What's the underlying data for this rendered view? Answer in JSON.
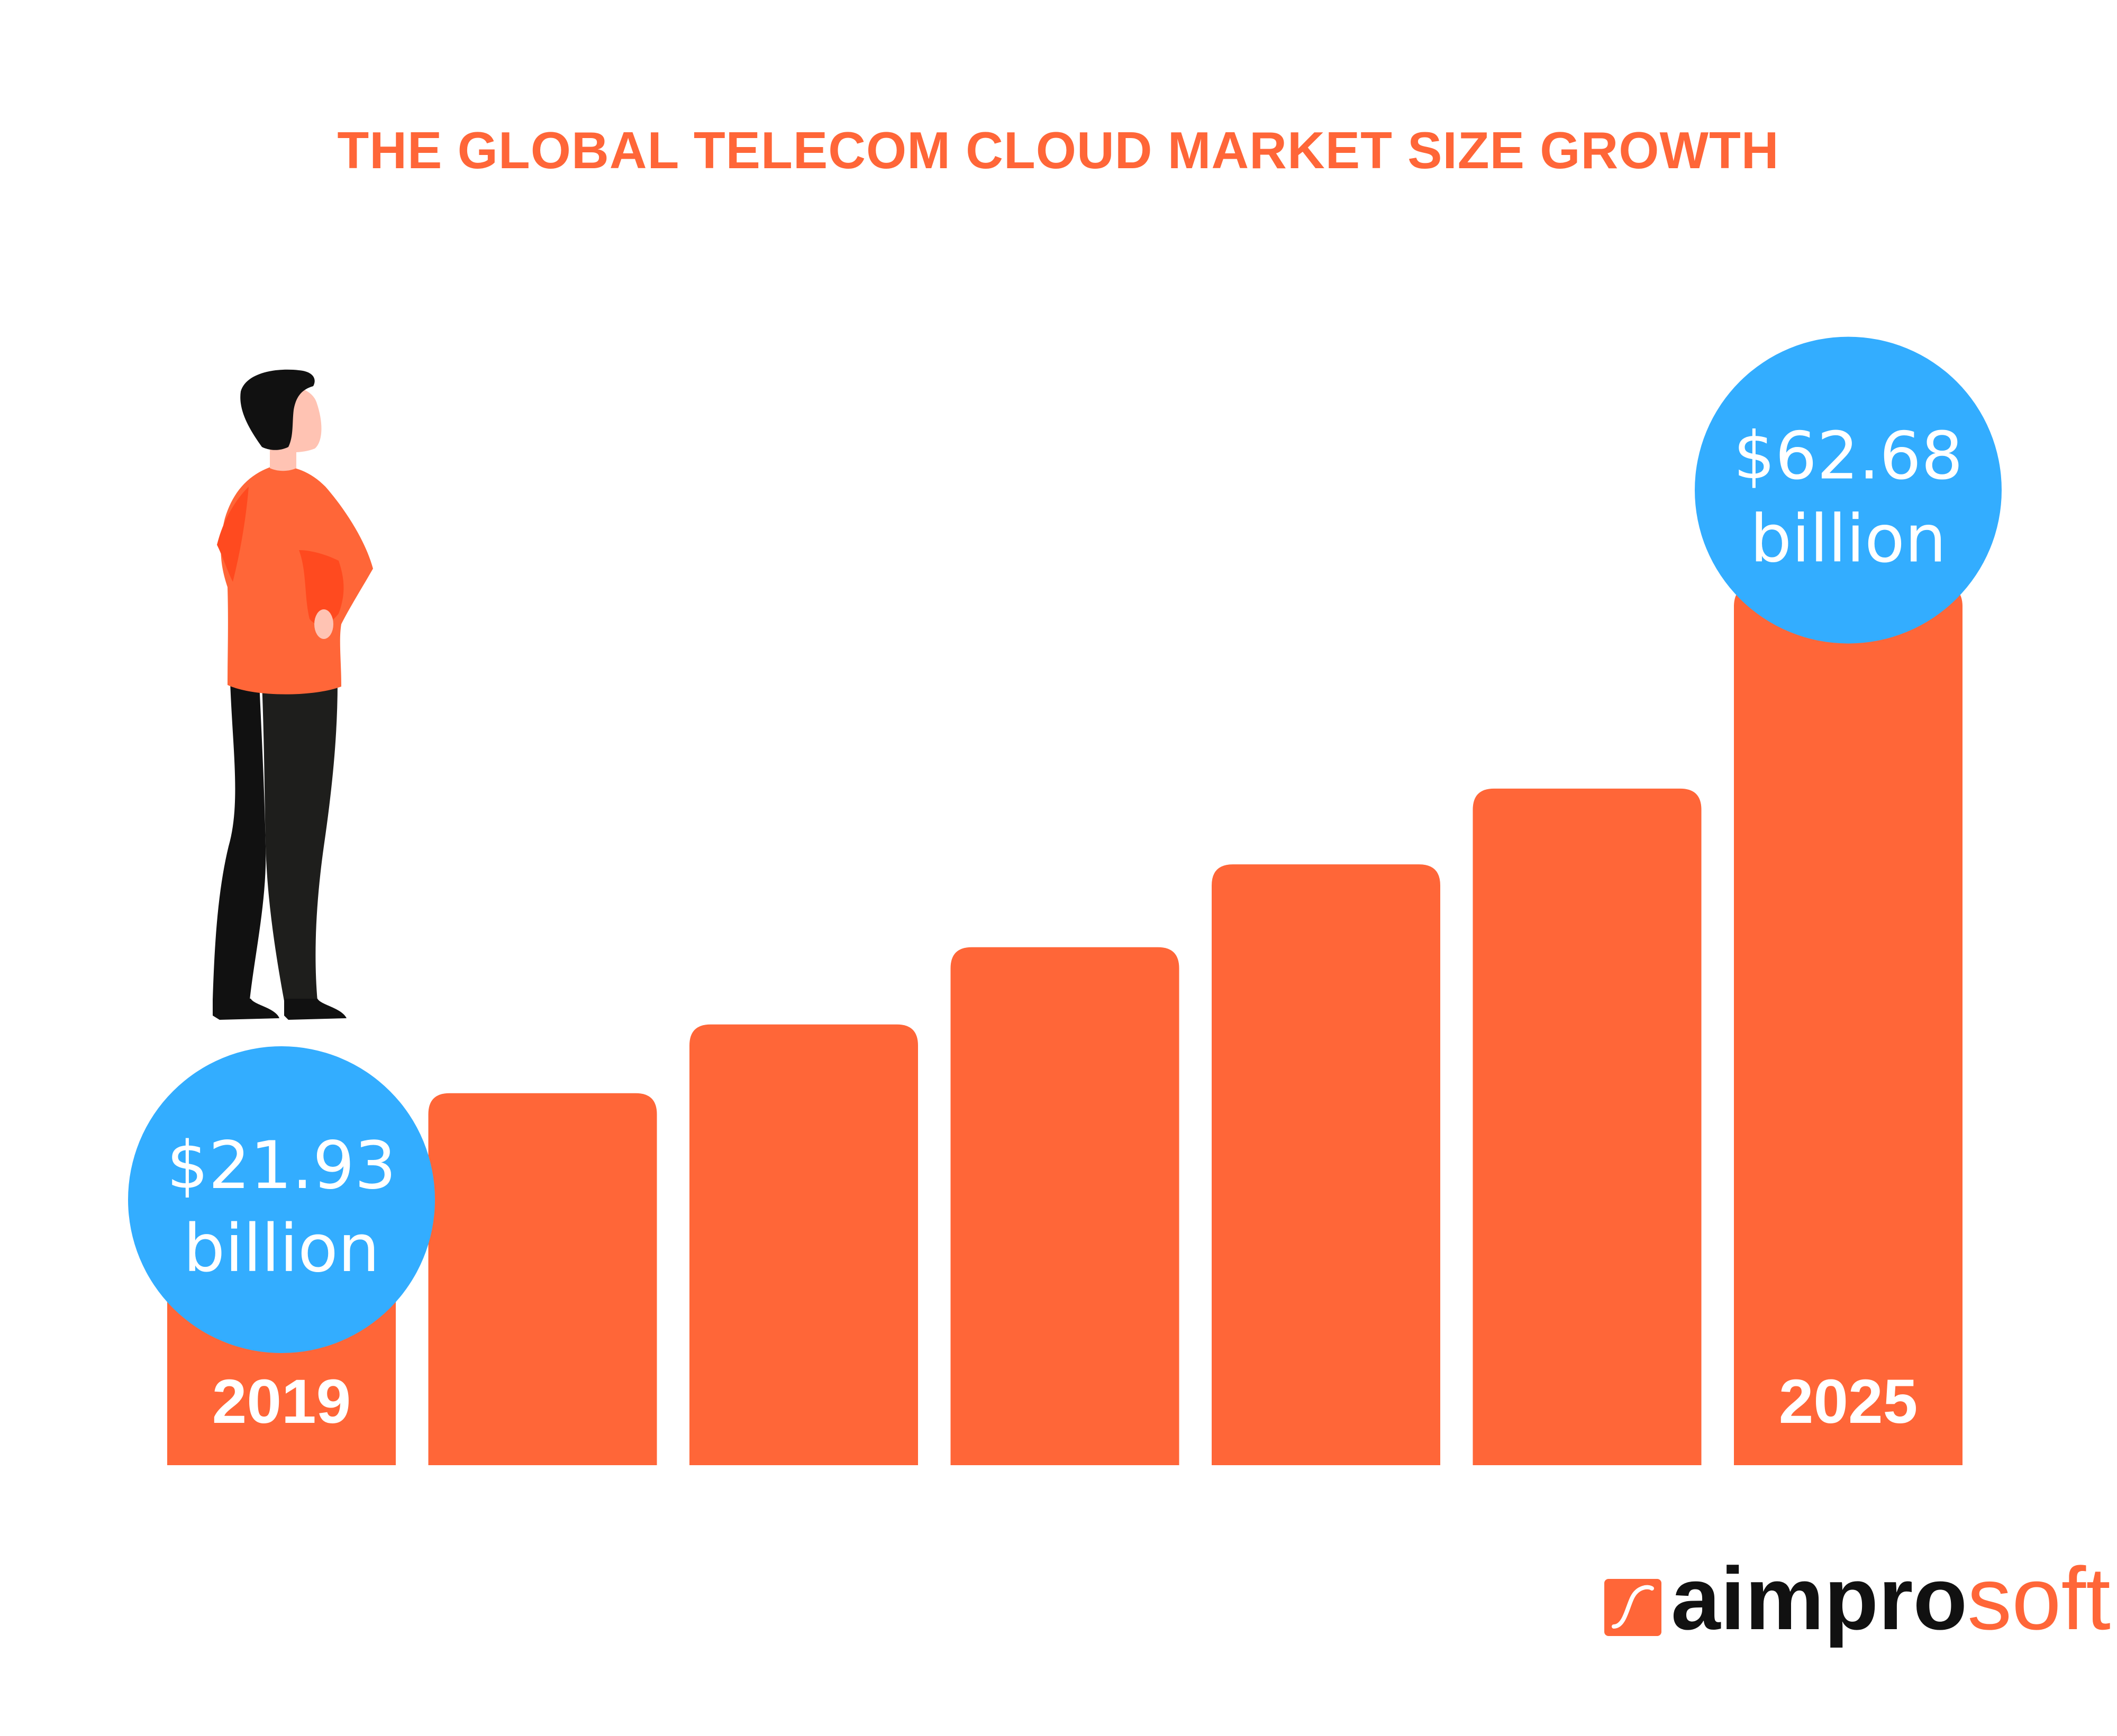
{
  "chart_data": {
    "type": "bar",
    "title": "THE GLOBAL TELECOM CLOUD MARKET SIZE GROWTH",
    "categories": [
      "2019",
      "",
      "",
      "",
      "",
      "",
      "2025"
    ],
    "values": [
      21.93,
      26.5,
      31.4,
      36.9,
      42.8,
      48.2,
      62.68
    ],
    "value_labels": [
      {
        "index": 0,
        "amount": "$21.93",
        "unit": "billion"
      },
      {
        "index": 6,
        "amount": "$62.68",
        "unit": "billion"
      }
    ],
    "ylim": [
      0,
      65
    ],
    "grid": false,
    "legend": "none"
  },
  "brand": {
    "logo_prefix": "aimpro",
    "logo_suffix": "soft"
  },
  "colors": {
    "title": "#ff6638",
    "bar": "#ff6638",
    "bubble": "#33adff",
    "bubble_text": "#ffffff",
    "year_text": "#ffffff",
    "logo_dark": "#111111",
    "logo_accent": "#ff6638",
    "shirt": "#ff6638",
    "shirt_shadow": "#ff4a1f",
    "pants": "#1e1e1c",
    "skin": "#ffc3b3",
    "hair": "#111111"
  },
  "illustration": {
    "figure": "person-standing-looking-right"
  }
}
